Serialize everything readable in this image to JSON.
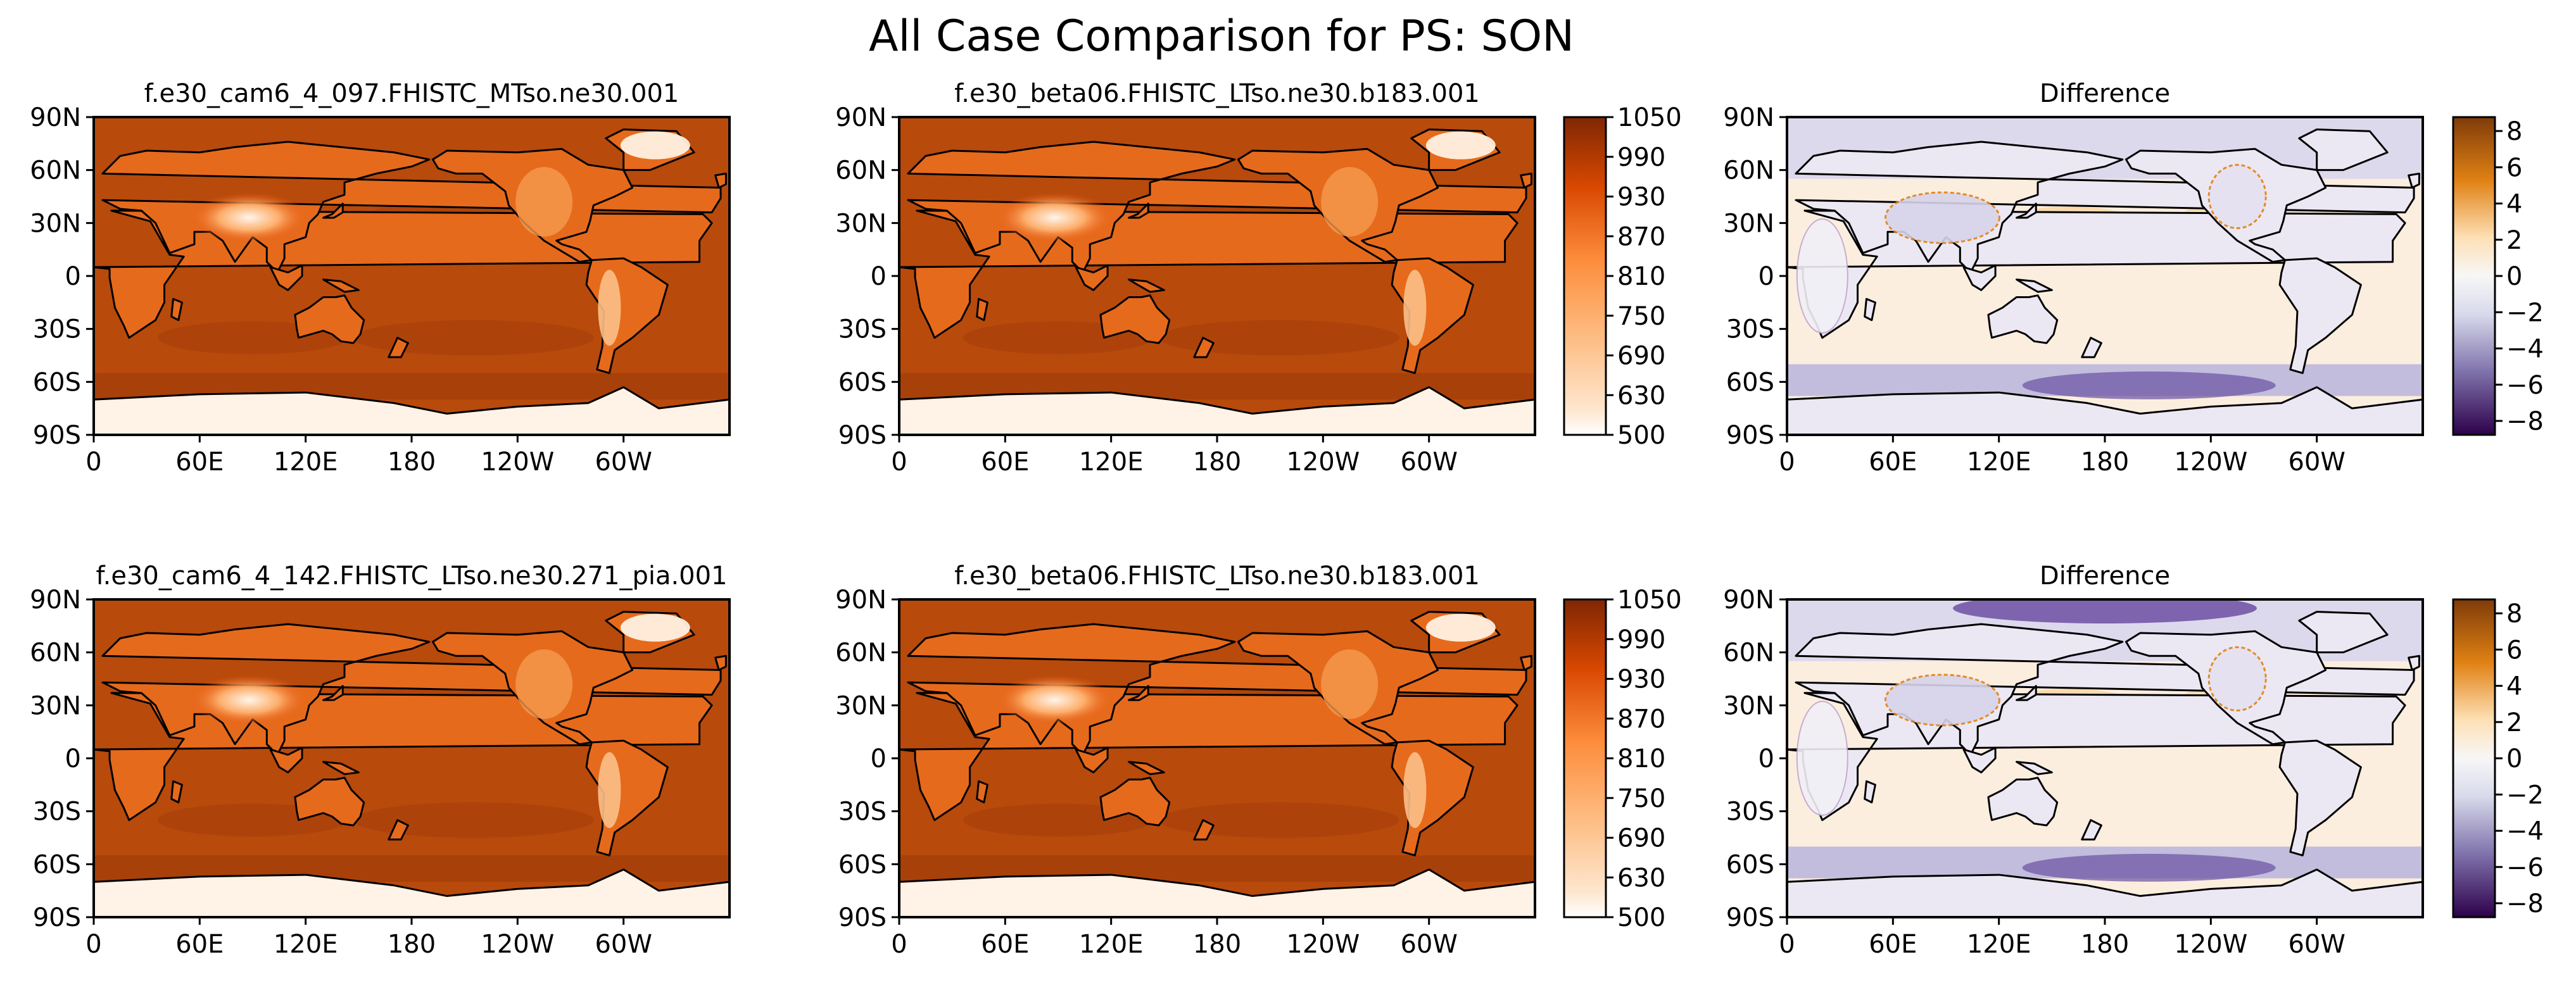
{
  "figure_title": "All Case Comparison for PS: SON",
  "colors": {
    "ps_low": "#fff5eb",
    "ps_mid": "#fd8d3c",
    "ps_high": "#7f2704",
    "ps_ocean": "#b84a0c",
    "diff_neg": "#2d004b",
    "diff_mid_neg": "#b2abd2",
    "diff_zero": "#f7f7f7",
    "diff_mid_pos": "#fdb863",
    "diff_pos": "#7f3b08",
    "coast": "#000000"
  },
  "chart_data": [
    {
      "type": "heatmap",
      "panel": "row1-test",
      "title": "f.e30_cam6_4_097.FHISTC_MTso.ne30.001",
      "variable": "PS",
      "season": "SON",
      "x_ticks": [
        "0",
        "60E",
        "120E",
        "180",
        "120W",
        "60W"
      ],
      "y_ticks": [
        "90N",
        "60N",
        "30N",
        "0",
        "30S",
        "60S",
        "90S"
      ],
      "xlim": [
        0,
        360
      ],
      "ylim": [
        -90,
        90
      ],
      "colormap": "Oranges"
    },
    {
      "type": "heatmap",
      "panel": "row1-control",
      "title": "f.e30_beta06.FHISTC_LTso.ne30.b183.001",
      "variable": "PS",
      "season": "SON",
      "x_ticks": [
        "0",
        "60E",
        "120E",
        "180",
        "120W",
        "60W"
      ],
      "y_ticks": [
        "90N",
        "60N",
        "30N",
        "0",
        "30S",
        "60S",
        "90S"
      ],
      "xlim": [
        0,
        360
      ],
      "ylim": [
        -90,
        90
      ],
      "colormap": "Oranges",
      "colorbar": {
        "ticks": [
          "1050",
          "990",
          "930",
          "870",
          "810",
          "750",
          "690",
          "630",
          "500"
        ]
      }
    },
    {
      "type": "heatmap",
      "panel": "row1-diff",
      "title": "Difference",
      "variable": "PS",
      "season": "SON",
      "x_ticks": [
        "0",
        "60E",
        "120E",
        "180",
        "120W",
        "60W"
      ],
      "y_ticks": [
        "90N",
        "60N",
        "30N",
        "0",
        "30S",
        "60S",
        "90S"
      ],
      "xlim": [
        0,
        360
      ],
      "ylim": [
        -90,
        90
      ],
      "colormap": "PuOr_r",
      "colorbar": {
        "ticks": [
          "8",
          "6",
          "4",
          "2",
          "0",
          "−2",
          "−4",
          "−6",
          "−8"
        ]
      }
    },
    {
      "type": "heatmap",
      "panel": "row2-test",
      "title": "f.e30_cam6_4_142.FHISTC_LTso.ne30.271_pia.001",
      "variable": "PS",
      "season": "SON",
      "x_ticks": [
        "0",
        "60E",
        "120E",
        "180",
        "120W",
        "60W"
      ],
      "y_ticks": [
        "90N",
        "60N",
        "30N",
        "0",
        "30S",
        "60S",
        "90S"
      ],
      "xlim": [
        0,
        360
      ],
      "ylim": [
        -90,
        90
      ],
      "colormap": "Oranges"
    },
    {
      "type": "heatmap",
      "panel": "row2-control",
      "title": "f.e30_beta06.FHISTC_LTso.ne30.b183.001",
      "variable": "PS",
      "season": "SON",
      "x_ticks": [
        "0",
        "60E",
        "120E",
        "180",
        "120W",
        "60W"
      ],
      "y_ticks": [
        "90N",
        "60N",
        "30N",
        "0",
        "30S",
        "60S",
        "90S"
      ],
      "xlim": [
        0,
        360
      ],
      "ylim": [
        -90,
        90
      ],
      "colormap": "Oranges",
      "colorbar": {
        "ticks": [
          "1050",
          "990",
          "930",
          "870",
          "810",
          "750",
          "690",
          "630",
          "500"
        ]
      }
    },
    {
      "type": "heatmap",
      "panel": "row2-diff",
      "title": "Difference",
      "variable": "PS",
      "season": "SON",
      "x_ticks": [
        "0",
        "60E",
        "120E",
        "180",
        "120W",
        "60W"
      ],
      "y_ticks": [
        "90N",
        "60N",
        "30N",
        "0",
        "30S",
        "60S",
        "90S"
      ],
      "xlim": [
        0,
        360
      ],
      "ylim": [
        -90,
        90
      ],
      "colormap": "PuOr_r",
      "colorbar": {
        "ticks": [
          "8",
          "6",
          "4",
          "2",
          "0",
          "−2",
          "−4",
          "−6",
          "−8"
        ]
      }
    }
  ]
}
